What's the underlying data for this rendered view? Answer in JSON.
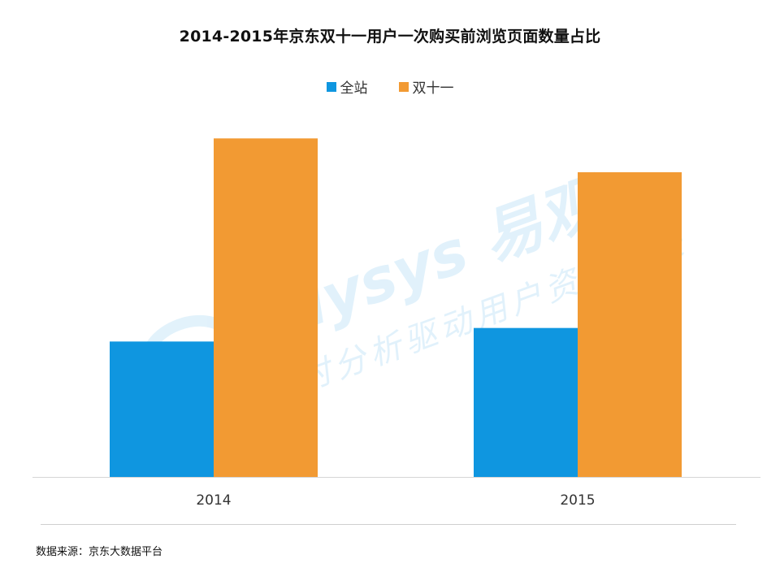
{
  "chart_data": {
    "type": "bar",
    "title": "2014-2015年京东双十一用户一次购买前浏览页面数量占比",
    "categories": [
      "2014",
      "2015"
    ],
    "series": [
      {
        "name": "全站",
        "color": "#0f96e0",
        "values": [
          20,
          22
        ]
      },
      {
        "name": "双十一",
        "color": "#f29a33",
        "values": [
          50,
          45
        ]
      }
    ],
    "xlabel": "",
    "ylabel": "",
    "ylim": [
      0,
      60
    ],
    "grid": false,
    "legend": "top-center"
  },
  "watermark": {
    "brand_text": "nalysys 易观",
    "slogan_text": "实时分析驱动用户资产成长"
  },
  "footer": {
    "source": "数据来源：京东大数据平台"
  }
}
